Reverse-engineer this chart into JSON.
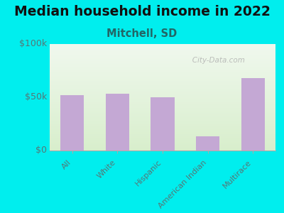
{
  "title": "Median household income in 2022",
  "subtitle": "Mitchell, SD",
  "categories": [
    "All",
    "White",
    "Hispanic",
    "American Indian",
    "Multirace"
  ],
  "values": [
    52000,
    53000,
    50000,
    13000,
    68000
  ],
  "bar_color": "#c4a8d4",
  "background_color": "#00EEEE",
  "grad_top": "#f0f8ee",
  "grad_bottom": "#d8eecc",
  "ylim": [
    0,
    100000
  ],
  "yticks": [
    0,
    50000,
    100000
  ],
  "ytick_labels": [
    "$0",
    "$50k",
    "$100k"
  ],
  "title_fontsize": 13.5,
  "subtitle_fontsize": 10.5,
  "tick_label_color": "#557777",
  "title_color": "#111111",
  "subtitle_color": "#226666",
  "watermark": "   City-Data.com",
  "watermark_icon": "●"
}
